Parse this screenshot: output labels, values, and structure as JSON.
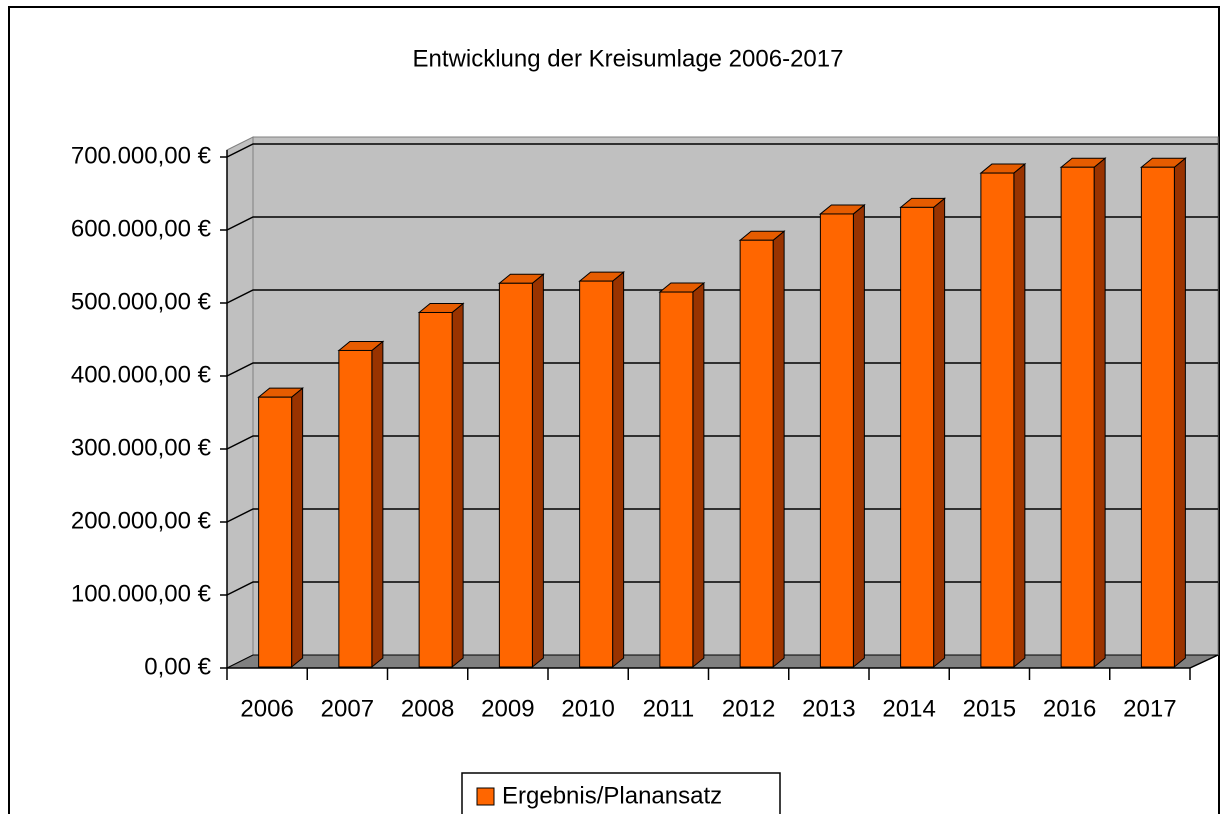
{
  "chart_data": {
    "type": "bar3d",
    "title": "Entwicklung der Kreisumlage 2006-2017",
    "categories": [
      "2006",
      "2007",
      "2008",
      "2009",
      "2010",
      "2011",
      "2012",
      "2013",
      "2014",
      "2015",
      "2016",
      "2017"
    ],
    "series": [
      {
        "name": "Ergebnis/Planansatz",
        "color": "#ff6600",
        "values": [
          371000,
          435000,
          487000,
          527000,
          530000,
          515000,
          586000,
          622000,
          631000,
          678000,
          686000,
          686000
        ]
      }
    ],
    "ylim": [
      0,
      700000
    ],
    "yticks": [
      {
        "value": 0,
        "label": "0,00 €"
      },
      {
        "value": 100000,
        "label": "100.000,00 €"
      },
      {
        "value": 200000,
        "label": "200.000,00 €"
      },
      {
        "value": 300000,
        "label": "300.000,00 €"
      },
      {
        "value": 400000,
        "label": "400.000,00 €"
      },
      {
        "value": 500000,
        "label": "500.000,00 €"
      },
      {
        "value": 600000,
        "label": "600.000,00 €"
      },
      {
        "value": 700000,
        "label": "700.000,00 €"
      }
    ],
    "grid": true,
    "legend": "bottom"
  }
}
